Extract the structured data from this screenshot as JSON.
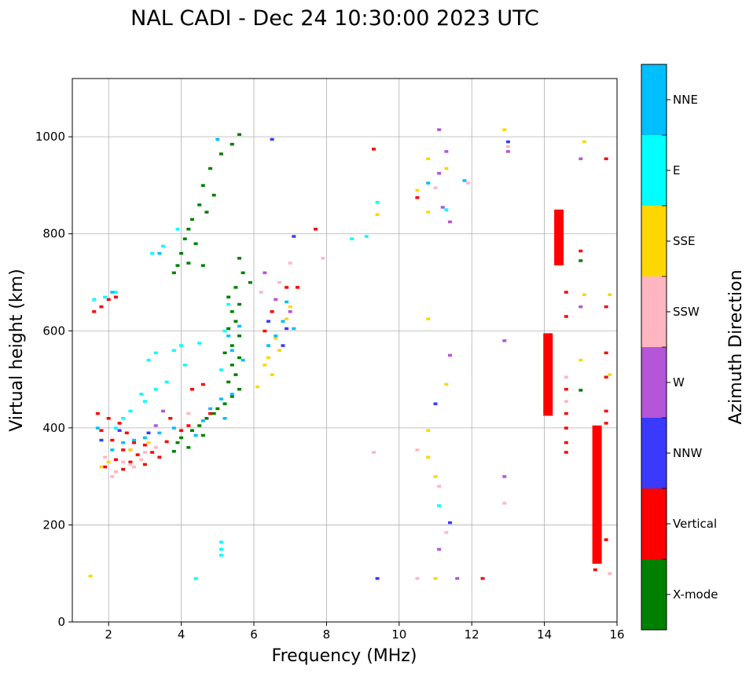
{
  "chart_data": {
    "type": "scatter",
    "title": "NAL CADI - Dec 24 10:30:00 2023 UTC",
    "xlabel": "Frequency (MHz)",
    "ylabel": "Virtual height (km)",
    "xlim": [
      1,
      16
    ],
    "ylim": [
      0,
      1120
    ],
    "xticks": [
      2,
      4,
      6,
      8,
      10,
      12,
      14,
      16
    ],
    "yticks": [
      0,
      200,
      400,
      600,
      800,
      1000
    ],
    "grid": true,
    "colorbar": {
      "label": "Azimuth Direction",
      "categories": [
        {
          "name": "X-mode",
          "color": "#008000"
        },
        {
          "name": "Vertical",
          "color": "#ff0000"
        },
        {
          "name": "NNW",
          "color": "#3a3aff"
        },
        {
          "name": "W",
          "color": "#b555d8"
        },
        {
          "name": "SSW",
          "color": "#ffb6c1"
        },
        {
          "name": "SSE",
          "color": "#ffd700"
        },
        {
          "name": "E",
          "color": "#00ffff"
        },
        {
          "name": "NNE",
          "color": "#00bfff"
        }
      ]
    },
    "series": [
      {
        "name": "X-mode",
        "points": [
          [
            5.6,
            1005
          ],
          [
            5.4,
            985
          ],
          [
            5.1,
            965
          ],
          [
            4.8,
            935
          ],
          [
            4.6,
            900
          ],
          [
            4.9,
            880
          ],
          [
            4.5,
            860
          ],
          [
            4.7,
            845
          ],
          [
            4.3,
            830
          ],
          [
            4.2,
            810
          ],
          [
            4.1,
            790
          ],
          [
            4.4,
            780
          ],
          [
            4.0,
            760
          ],
          [
            4.2,
            740
          ],
          [
            3.9,
            735
          ],
          [
            4.6,
            735
          ],
          [
            3.8,
            720
          ],
          [
            5.6,
            750
          ],
          [
            5.7,
            720
          ],
          [
            5.9,
            700
          ],
          [
            5.5,
            690
          ],
          [
            5.3,
            670
          ],
          [
            5.6,
            655
          ],
          [
            5.4,
            640
          ],
          [
            5.5,
            620
          ],
          [
            5.3,
            605
          ],
          [
            5.6,
            590
          ],
          [
            5.4,
            570
          ],
          [
            5.2,
            555
          ],
          [
            5.6,
            545
          ],
          [
            5.4,
            530
          ],
          [
            5.5,
            510
          ],
          [
            5.3,
            495
          ],
          [
            5.6,
            480
          ],
          [
            5.4,
            465
          ],
          [
            5.2,
            450
          ],
          [
            5.0,
            440
          ],
          [
            4.9,
            430
          ],
          [
            4.7,
            420
          ],
          [
            4.5,
            405
          ],
          [
            4.3,
            395
          ],
          [
            4.6,
            385
          ],
          [
            4.0,
            380
          ],
          [
            3.9,
            370
          ],
          [
            4.2,
            360
          ],
          [
            3.8,
            352
          ],
          [
            14.1,
            455
          ],
          [
            14.1,
            545
          ],
          [
            15.0,
            478
          ],
          [
            15.0,
            745
          ]
        ]
      },
      {
        "name": "Vertical",
        "points": [
          [
            1.6,
            640
          ],
          [
            1.8,
            650
          ],
          [
            2.0,
            665
          ],
          [
            2.2,
            670
          ],
          [
            1.7,
            430
          ],
          [
            2.0,
            420
          ],
          [
            2.3,
            410
          ],
          [
            1.8,
            395
          ],
          [
            2.5,
            390
          ],
          [
            2.1,
            375
          ],
          [
            2.7,
            370
          ],
          [
            3.0,
            365
          ],
          [
            2.4,
            355
          ],
          [
            3.2,
            350
          ],
          [
            2.8,
            345
          ],
          [
            3.4,
            340
          ],
          [
            2.2,
            335
          ],
          [
            2.6,
            330
          ],
          [
            3.0,
            325
          ],
          [
            1.9,
            320
          ],
          [
            2.4,
            315
          ],
          [
            3.6,
            372
          ],
          [
            4.0,
            395
          ],
          [
            4.2,
            405
          ],
          [
            3.7,
            420
          ],
          [
            4.8,
            430
          ],
          [
            4.3,
            480
          ],
          [
            4.6,
            490
          ],
          [
            6.3,
            600
          ],
          [
            6.5,
            640
          ],
          [
            6.9,
            690
          ],
          [
            7.2,
            690
          ],
          [
            7.7,
            810
          ],
          [
            9.3,
            975
          ],
          [
            10.5,
            875
          ],
          [
            12.3,
            90
          ],
          [
            15.7,
            955
          ],
          [
            15.7,
            650
          ],
          [
            15.7,
            555
          ],
          [
            15.7,
            505
          ],
          [
            15.7,
            435
          ],
          [
            15.7,
            410
          ],
          [
            15.7,
            170
          ],
          [
            15.0,
            765
          ],
          [
            14.6,
            680
          ],
          [
            14.6,
            630
          ],
          [
            14.6,
            480
          ],
          [
            14.6,
            430
          ],
          [
            14.6,
            400
          ],
          [
            14.6,
            370
          ],
          [
            14.6,
            350
          ],
          [
            14.1,
            515
          ],
          [
            14.1,
            470
          ],
          [
            15.4,
            108
          ]
        ]
      },
      {
        "name": "NNW",
        "points": [
          [
            6.5,
            995
          ],
          [
            7.1,
            795
          ],
          [
            13.0,
            990
          ],
          [
            11.4,
            205
          ],
          [
            11.0,
            450
          ],
          [
            9.4,
            90
          ],
          [
            1.8,
            375
          ],
          [
            2.3,
            395
          ],
          [
            3.1,
            390
          ],
          [
            6.4,
            620
          ],
          [
            6.8,
            570
          ],
          [
            6.9,
            605
          ]
        ]
      },
      {
        "name": "W",
        "points": [
          [
            11.1,
            1015
          ],
          [
            11.3,
            970
          ],
          [
            13.0,
            970
          ],
          [
            11.2,
            855
          ],
          [
            11.4,
            825
          ],
          [
            11.1,
            925
          ],
          [
            11.4,
            550
          ],
          [
            11.1,
            150
          ],
          [
            11.6,
            90
          ],
          [
            15.0,
            955
          ],
          [
            15.0,
            650
          ],
          [
            12.9,
            580
          ],
          [
            12.9,
            300
          ],
          [
            6.6,
            665
          ],
          [
            7.0,
            640
          ],
          [
            6.3,
            720
          ],
          [
            3.5,
            435
          ],
          [
            3.3,
            405
          ],
          [
            2.6,
            355
          ]
        ]
      },
      {
        "name": "SSW",
        "points": [
          [
            13.0,
            980
          ],
          [
            11.9,
            905
          ],
          [
            11.0,
            895
          ],
          [
            7.9,
            750
          ],
          [
            7.0,
            740
          ],
          [
            6.7,
            700
          ],
          [
            6.2,
            680
          ],
          [
            9.3,
            350
          ],
          [
            10.5,
            355
          ],
          [
            11.1,
            280
          ],
          [
            10.5,
            90
          ],
          [
            11.3,
            185
          ],
          [
            12.9,
            245
          ],
          [
            14.6,
            505
          ],
          [
            14.6,
            455
          ],
          [
            15.8,
            100
          ],
          [
            2.6,
            325
          ],
          [
            2.9,
            335
          ],
          [
            2.2,
            310
          ],
          [
            1.9,
            340
          ],
          [
            2.1,
            300
          ],
          [
            2.4,
            330
          ],
          [
            3.0,
            350
          ],
          [
            2.7,
            320
          ],
          [
            3.3,
            360
          ],
          [
            4.2,
            430
          ]
        ]
      },
      {
        "name": "SSE",
        "points": [
          [
            12.9,
            1015
          ],
          [
            15.1,
            990
          ],
          [
            11.3,
            935
          ],
          [
            10.8,
            955
          ],
          [
            10.5,
            890
          ],
          [
            10.8,
            845
          ],
          [
            9.4,
            840
          ],
          [
            10.8,
            625
          ],
          [
            11.3,
            490
          ],
          [
            10.8,
            395
          ],
          [
            10.8,
            340
          ],
          [
            11.0,
            300
          ],
          [
            11.0,
            90
          ],
          [
            15.1,
            675
          ],
          [
            15.0,
            540
          ],
          [
            15.8,
            510
          ],
          [
            15.8,
            675
          ],
          [
            6.3,
            530
          ],
          [
            6.4,
            545
          ],
          [
            6.1,
            485
          ],
          [
            6.7,
            560
          ],
          [
            6.6,
            585
          ],
          [
            6.9,
            625
          ],
          [
            7.0,
            650
          ],
          [
            6.5,
            510
          ],
          [
            2.0,
            330
          ],
          [
            1.8,
            320
          ],
          [
            2.6,
            355
          ],
          [
            3.1,
            370
          ],
          [
            1.5,
            95
          ]
        ]
      },
      {
        "name": "E",
        "points": [
          [
            1.6,
            665
          ],
          [
            1.9,
            670
          ],
          [
            2.2,
            680
          ],
          [
            3.9,
            810
          ],
          [
            3.5,
            775
          ],
          [
            3.2,
            760
          ],
          [
            3.1,
            540
          ],
          [
            3.3,
            555
          ],
          [
            3.8,
            560
          ],
          [
            4.0,
            570
          ],
          [
            2.9,
            470
          ],
          [
            3.0,
            455
          ],
          [
            3.3,
            480
          ],
          [
            3.6,
            495
          ],
          [
            2.6,
            435
          ],
          [
            2.4,
            420
          ],
          [
            2.2,
            400
          ],
          [
            5.1,
            165
          ],
          [
            5.1,
            150
          ],
          [
            5.1,
            138
          ],
          [
            4.4,
            90
          ],
          [
            8.7,
            790
          ],
          [
            9.1,
            795
          ],
          [
            9.4,
            865
          ],
          [
            11.3,
            850
          ],
          [
            11.1,
            240
          ],
          [
            5.3,
            655
          ],
          [
            5.2,
            600
          ],
          [
            4.5,
            575
          ],
          [
            5.1,
            520
          ],
          [
            4.1,
            530
          ]
        ]
      },
      {
        "name": "NNE",
        "points": [
          [
            5.4,
            560
          ],
          [
            5.7,
            540
          ],
          [
            5.3,
            590
          ],
          [
            5.6,
            610
          ],
          [
            5.1,
            460
          ],
          [
            5.4,
            470
          ],
          [
            4.8,
            440
          ],
          [
            5.2,
            420
          ],
          [
            4.6,
            415
          ],
          [
            4.4,
            385
          ],
          [
            3.8,
            400
          ],
          [
            3.4,
            390
          ],
          [
            3.0,
            380
          ],
          [
            2.7,
            375
          ],
          [
            2.4,
            370
          ],
          [
            2.1,
            355
          ],
          [
            1.7,
            400
          ],
          [
            6.6,
            590
          ],
          [
            6.4,
            570
          ],
          [
            6.8,
            620
          ],
          [
            6.9,
            660
          ],
          [
            7.1,
            605
          ],
          [
            10.8,
            905
          ],
          [
            11.8,
            910
          ],
          [
            5.0,
            995
          ],
          [
            3.4,
            760
          ],
          [
            2.1,
            680
          ]
        ]
      }
    ],
    "bars": [
      {
        "series": "Vertical",
        "x": 14.4,
        "y0": 735,
        "y1": 850
      },
      {
        "series": "Vertical",
        "x": 15.45,
        "y0": 120,
        "y1": 405
      },
      {
        "series": "Vertical",
        "x": 14.1,
        "y0": 425,
        "y1": 595
      }
    ]
  }
}
